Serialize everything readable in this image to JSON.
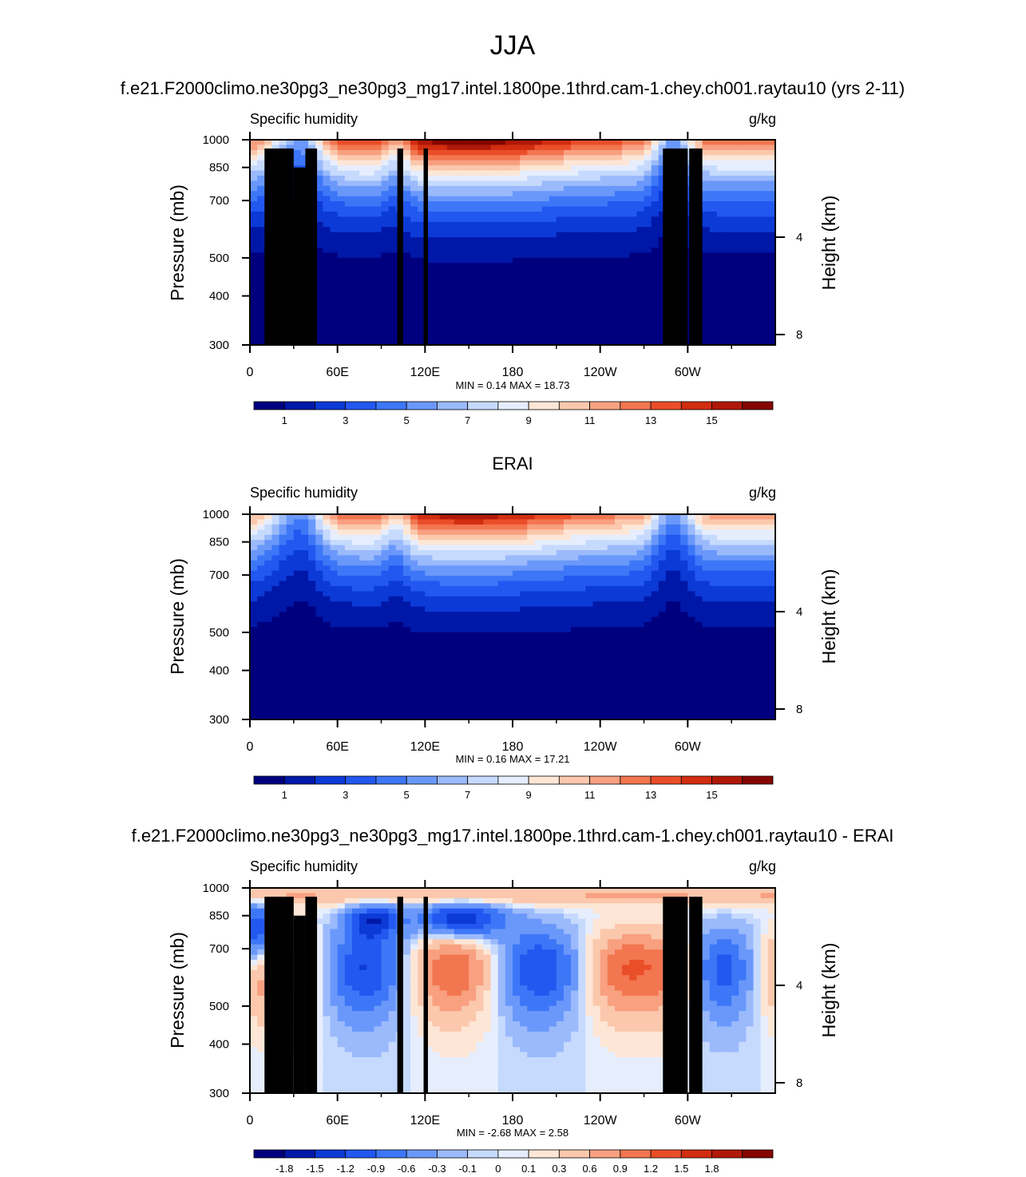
{
  "figure": {
    "title": "JJA",
    "panels": [
      {
        "id": "test",
        "header": "f.e21.F2000climo.ne30pg3_ne30pg3_mg17.intel.1800pe.1thrd.cam-1.chey.ch001.raytau10 (yrs 2-11)",
        "left_label": "Specific humidity",
        "right_label": "g/kg",
        "stats": "MIN =   0.14  MAX =  18.73"
      },
      {
        "id": "obs",
        "header": "ERAI",
        "left_label": "Specific humidity",
        "right_label": "g/kg",
        "stats": "MIN =   0.16  MAX =  17.21"
      },
      {
        "id": "diff",
        "header": "f.e21.F2000climo.ne30pg3_ne30pg3_mg17.intel.1800pe.1thrd.cam-1.chey.ch001.raytau10 - ERAI",
        "left_label": "Specific humidity",
        "right_label": "g/kg",
        "stats": "MIN =  -2.68  MAX =   2.58"
      }
    ]
  },
  "chart_data": [
    {
      "type": "heatmap",
      "title": "f.e21.F2000climo.ne30pg3_ne30pg3_mg17.intel.1800pe.1thrd.cam-1.chey.ch001.raytau10 (yrs 2-11)",
      "variable": "Specific humidity",
      "units": "g/kg",
      "ylabel": "Pressure (mb)",
      "y2label": "Height (km)",
      "x_ticks": [
        "0",
        "60E",
        "120E",
        "180",
        "120W",
        "60W"
      ],
      "y_ticks": [
        "300",
        "400",
        "500",
        "700",
        "850",
        "1000"
      ],
      "y2_ticks": [
        "8",
        "4"
      ],
      "xlim": [
        0,
        360
      ],
      "ylim": [
        1000,
        300
      ],
      "colorbar_labels": [
        "1",
        "3",
        "5",
        "7",
        "9",
        "11",
        "13",
        "15"
      ],
      "colors": [
        "#00007f",
        "#0018a8",
        "#0c3ad6",
        "#2258f0",
        "#3d77f7",
        "#6a98fa",
        "#9bbafc",
        "#c6dafd",
        "#e6eefe",
        "#fde6d6",
        "#fbc8ad",
        "#f8a080",
        "#f27650",
        "#ea4e28",
        "#d22d10",
        "#b01808",
        "#850600"
      ],
      "min": 0.14,
      "max": 18.73
    },
    {
      "type": "heatmap",
      "title": "ERAI",
      "variable": "Specific humidity",
      "units": "g/kg",
      "ylabel": "Pressure (mb)",
      "y2label": "Height (km)",
      "x_ticks": [
        "0",
        "60E",
        "120E",
        "180",
        "120W",
        "60W"
      ],
      "y_ticks": [
        "300",
        "400",
        "500",
        "700",
        "850",
        "1000"
      ],
      "y2_ticks": [
        "8",
        "4"
      ],
      "xlim": [
        0,
        360
      ],
      "ylim": [
        1000,
        300
      ],
      "colorbar_labels": [
        "1",
        "3",
        "5",
        "7",
        "9",
        "11",
        "13",
        "15"
      ],
      "colors": [
        "#00007f",
        "#0018a8",
        "#0c3ad6",
        "#2258f0",
        "#3d77f7",
        "#6a98fa",
        "#9bbafc",
        "#c6dafd",
        "#e6eefe",
        "#fde6d6",
        "#fbc8ad",
        "#f8a080",
        "#f27650",
        "#ea4e28",
        "#d22d10",
        "#b01808",
        "#850600"
      ],
      "min": 0.16,
      "max": 17.21
    },
    {
      "type": "heatmap",
      "title": "f.e21.F2000climo.ne30pg3_ne30pg3_mg17.intel.1800pe.1thrd.cam-1.chey.ch001.raytau10 - ERAI",
      "variable": "Specific humidity",
      "units": "g/kg",
      "ylabel": "Pressure (mb)",
      "y2label": "Height (km)",
      "x_ticks": [
        "0",
        "60E",
        "120E",
        "180",
        "120W",
        "60W"
      ],
      "y_ticks": [
        "300",
        "400",
        "500",
        "700",
        "850",
        "1000"
      ],
      "y2_ticks": [
        "8",
        "4"
      ],
      "xlim": [
        0,
        360
      ],
      "ylim": [
        1000,
        300
      ],
      "colorbar_labels": [
        "-1.8",
        "-1.5",
        "-1.2",
        "-0.9",
        "-0.6",
        "-0.3",
        "-0.1",
        "0",
        "0.1",
        "0.3",
        "0.6",
        "0.9",
        "1.2",
        "1.5",
        "1.8"
      ],
      "colors": [
        "#00007f",
        "#0018a8",
        "#0c3ad6",
        "#2258f0",
        "#3d77f7",
        "#6a98fa",
        "#9bbafc",
        "#c6dafd",
        "#e6eefe",
        "#fde6d6",
        "#fbc8ad",
        "#f8a080",
        "#f27650",
        "#ea4e28",
        "#d22d10",
        "#b01808",
        "#850600"
      ],
      "min": -2.68,
      "max": 2.58
    }
  ]
}
